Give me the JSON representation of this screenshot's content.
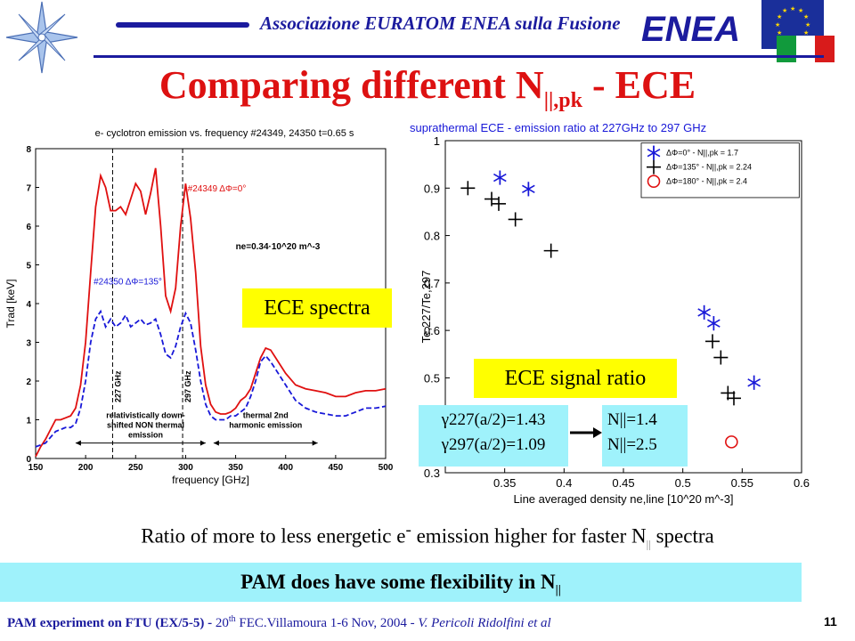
{
  "header": {
    "org_text": "Associazione EURATOM ENEA sulla Fusione",
    "logo_text": "ENEA"
  },
  "title": {
    "main": "Comparing different N",
    "sub": "||,pk",
    "suffix": " - ECE"
  },
  "chart_data": [
    {
      "type": "line",
      "title": "e- cyclotron emission vs. frequency #24349, 24350 t=0.65 s",
      "xlabel": "frequency [GHz]",
      "ylabel": "Trad [keV]",
      "xlim": [
        150,
        500
      ],
      "ylim": [
        0,
        8
      ],
      "xticks": [
        150,
        200,
        250,
        300,
        350,
        400,
        450,
        500
      ],
      "yticks": [
        0,
        1,
        2,
        3,
        4,
        5,
        6,
        7,
        8
      ],
      "series": [
        {
          "name": "#24349 ΔΦ=0°",
          "color": "#e01010",
          "style": "solid",
          "x": [
            150,
            155,
            160,
            165,
            170,
            175,
            180,
            185,
            190,
            195,
            200,
            205,
            210,
            215,
            220,
            225,
            230,
            235,
            240,
            245,
            250,
            255,
            260,
            265,
            270,
            275,
            280,
            285,
            290,
            295,
            300,
            305,
            310,
            315,
            320,
            325,
            330,
            335,
            340,
            345,
            350,
            355,
            360,
            365,
            370,
            375,
            380,
            385,
            390,
            395,
            400,
            410,
            420,
            430,
            440,
            450,
            460,
            470,
            480,
            490,
            500
          ],
          "y": [
            0.05,
            0.3,
            0.5,
            0.75,
            1.0,
            1.0,
            1.05,
            1.1,
            1.3,
            1.9,
            3.0,
            4.8,
            6.5,
            7.3,
            7.0,
            6.4,
            6.4,
            6.5,
            6.3,
            6.7,
            7.1,
            6.9,
            6.3,
            6.85,
            7.5,
            6.0,
            4.2,
            3.8,
            4.4,
            6.0,
            7.1,
            6.2,
            4.8,
            2.9,
            1.9,
            1.4,
            1.2,
            1.15,
            1.15,
            1.2,
            1.3,
            1.5,
            1.6,
            1.8,
            2.2,
            2.6,
            2.85,
            2.8,
            2.6,
            2.4,
            2.2,
            1.9,
            1.8,
            1.75,
            1.7,
            1.6,
            1.6,
            1.7,
            1.75,
            1.75,
            1.8
          ]
        },
        {
          "name": "#24350 ΔΦ=135°",
          "color": "#1818d8",
          "style": "dashed",
          "x": [
            150,
            155,
            160,
            165,
            170,
            175,
            180,
            185,
            190,
            195,
            200,
            205,
            210,
            215,
            220,
            225,
            230,
            235,
            240,
            245,
            250,
            255,
            260,
            265,
            270,
            275,
            280,
            285,
            290,
            295,
            300,
            305,
            310,
            315,
            320,
            325,
            330,
            335,
            340,
            345,
            350,
            355,
            360,
            365,
            370,
            375,
            380,
            385,
            390,
            395,
            400,
            410,
            420,
            430,
            440,
            450,
            460,
            470,
            480,
            490,
            500
          ],
          "y": [
            0.3,
            0.35,
            0.4,
            0.55,
            0.7,
            0.75,
            0.8,
            0.8,
            0.9,
            1.3,
            2.0,
            3.0,
            3.6,
            3.8,
            3.4,
            3.6,
            3.4,
            3.5,
            3.7,
            3.4,
            3.5,
            3.6,
            3.45,
            3.5,
            3.6,
            3.2,
            2.7,
            2.6,
            2.9,
            3.4,
            3.75,
            3.5,
            2.8,
            2.0,
            1.4,
            1.1,
            1.0,
            1.0,
            1.0,
            1.1,
            1.1,
            1.2,
            1.3,
            1.6,
            2.0,
            2.5,
            2.65,
            2.5,
            2.3,
            2.1,
            1.9,
            1.5,
            1.3,
            1.2,
            1.15,
            1.1,
            1.1,
            1.2,
            1.3,
            1.3,
            1.35
          ]
        }
      ],
      "markers": [
        {
          "x": 227,
          "label": "227 GHz"
        },
        {
          "x": 297,
          "label": "297 GHz"
        }
      ],
      "annotations": {
        "ne": "ne=0.34·10^20 m^-3",
        "left_region": [
          "relativistically down-",
          "shifted NON thermal",
          "emission"
        ],
        "right_region": [
          "thermal 2nd",
          "harmonic emission"
        ]
      }
    },
    {
      "type": "scatter",
      "title": "suprathermal ECE - emission ratio at 227GHz to 297 GHz",
      "xlabel": "Line averaged density ne,line [10^20 m^-3]",
      "ylabel": "Te,227/Te,297",
      "xlim": [
        0.3,
        0.6
      ],
      "ylim": [
        0.3,
        1.0
      ],
      "xticks": [
        0.35,
        0.4,
        0.45,
        0.5,
        0.55,
        0.6
      ],
      "yticks": [
        0.3,
        0.4,
        0.5,
        0.6,
        0.7,
        0.8,
        0.9,
        1.0
      ],
      "series": [
        {
          "name": "ΔΦ=0° - N||,pk = 1.7",
          "marker": "asterisk",
          "color": "#1818d8",
          "x": [
            0.346,
            0.37,
            0.518,
            0.526,
            0.56
          ],
          "y": [
            0.922,
            0.898,
            0.638,
            0.615,
            0.49
          ]
        },
        {
          "name": "ΔΦ=135° - N||,pk = 2.24",
          "marker": "plus",
          "color": "#000000",
          "x": [
            0.319,
            0.339,
            0.345,
            0.359,
            0.389,
            0.525,
            0.532,
            0.538,
            0.543
          ],
          "y": [
            0.9,
            0.877,
            0.867,
            0.834,
            0.768,
            0.577,
            0.543,
            0.468,
            0.457
          ]
        },
        {
          "name": "ΔΦ=180° - N||,pk = 2.4",
          "marker": "circle",
          "color": "#e01010",
          "x": [
            0.541
          ],
          "y": [
            0.365
          ]
        }
      ]
    }
  ],
  "labels": {
    "ece_spectra": "ECE spectra",
    "ece_signal_ratio": "ECE signal ratio",
    "gamma_227": "γ227(a/2)=1.43",
    "gamma_297": "γ297(a/2)=1.09",
    "n_high": "N||=1.4",
    "n_low": "N||=2.5"
  },
  "ratio_text": {
    "before": "Ratio of more to less energetic e",
    "sup": "-",
    "middle": " emission higher for faster N",
    "sub": "||",
    "after": " spectra"
  },
  "pam_bar": {
    "text": "PAM does have some flexibility in N",
    "sub": "||"
  },
  "footer": {
    "bold": "PAM experiment on FTU (EX/5-5) - ",
    "conf_pre": "20",
    "conf_sup": "th",
    "conf_post": " FEC.Villamoura 1-6 Nov, 2004 - ",
    "authors": "V. Pericoli Ridolfini et al"
  },
  "page_number": "11",
  "colors": {
    "title_red": "#dd1111",
    "navy": "#1b1b9e",
    "yellow_box": "#ffff00",
    "cyan_box": "#9ff2fb"
  }
}
